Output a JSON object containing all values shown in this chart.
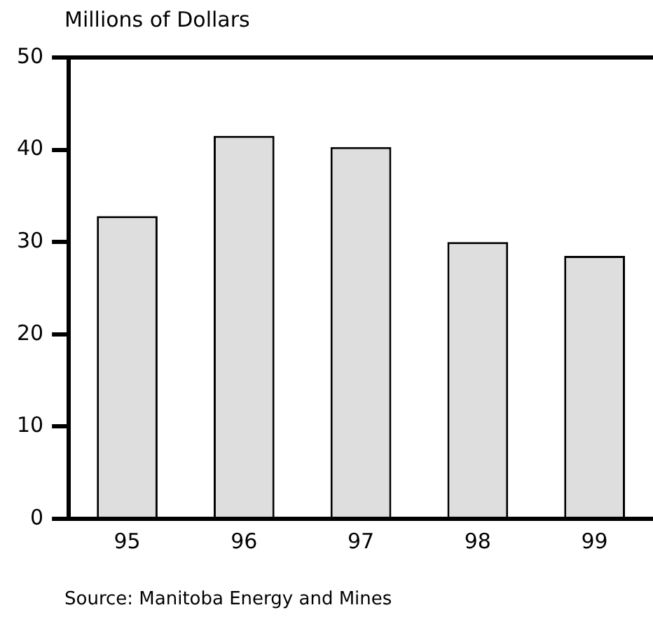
{
  "chart_data": {
    "type": "bar",
    "ylabel": "Millions of Dollars",
    "annotations": [
      "Source:  Manitoba Energy and Mines"
    ],
    "categories": [
      "95",
      "96",
      "97",
      "98",
      "99"
    ],
    "values": [
      32.8,
      41.5,
      40.3,
      30.0,
      28.5
    ],
    "color": "#dedede",
    "ylim": [
      0,
      50
    ],
    "yticks": [
      0,
      10,
      20,
      30,
      40,
      50
    ],
    "grid": false,
    "legend": false
  }
}
